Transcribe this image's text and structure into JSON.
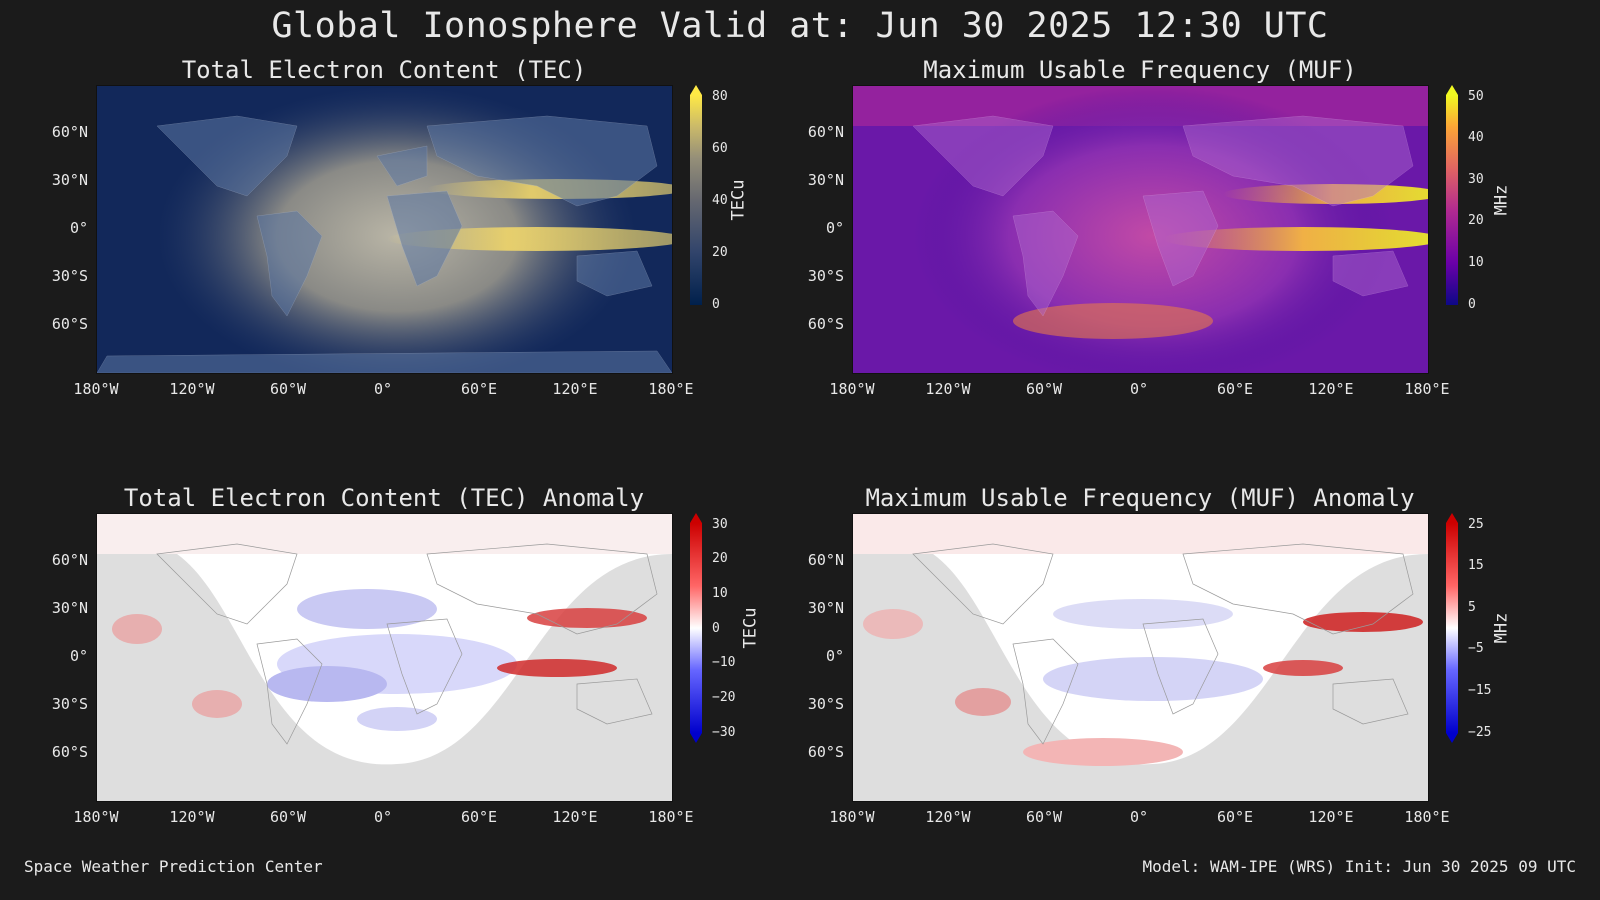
{
  "title": "Global Ionosphere Valid at: Jun 30 2025 12:30 UTC",
  "lat_labels": [
    "60°N",
    "30°N",
    "0°",
    "30°S",
    "60°S"
  ],
  "lon_labels": [
    "180°W",
    "120°W",
    "60°W",
    "0°",
    "60°E",
    "120°E",
    "180°E"
  ],
  "panels": [
    {
      "id": "tec",
      "title": "Total Electron Content (TEC)",
      "unit": "TECu",
      "ticks": [
        "80",
        "60",
        "40",
        "20",
        "0"
      ],
      "scale": "sequential-cividis",
      "colors": [
        "#00204c",
        "#31446b",
        "#666870",
        "#958f78",
        "#cbba69",
        "#ffe945"
      ]
    },
    {
      "id": "muf",
      "title": "Maximum Usable Frequency (MUF)",
      "unit": "MHz",
      "ticks": [
        "50",
        "40",
        "30",
        "20",
        "10",
        "0"
      ],
      "scale": "sequential-plasma",
      "colors": [
        "#0d0887",
        "#6a00a8",
        "#b12a90",
        "#e16462",
        "#fca636",
        "#f0f921"
      ]
    },
    {
      "id": "tec-anom",
      "title": "Total Electron Content (TEC) Anomaly",
      "unit": "TECu",
      "ticks": [
        "30",
        "20",
        "10",
        "0",
        "−10",
        "−20",
        "−30"
      ],
      "scale": "diverging-bwr",
      "colors": [
        "#cc0000",
        "#ff6666",
        "#ffffff",
        "#6666ff",
        "#0000cc"
      ]
    },
    {
      "id": "muf-anom",
      "title": "Maximum Usable Frequency (MUF) Anomaly",
      "unit": "MHz",
      "ticks": [
        "25",
        "15",
        "5",
        "−5",
        "−15",
        "−25"
      ],
      "scale": "diverging-bwr",
      "colors": [
        "#cc0000",
        "#ff6666",
        "#ffffff",
        "#6666ff",
        "#0000cc"
      ]
    }
  ],
  "footer": {
    "left": "Space Weather Prediction Center",
    "right": "Model: WAM-IPE (WRS) Init: Jun 30 2025 09 UTC"
  }
}
